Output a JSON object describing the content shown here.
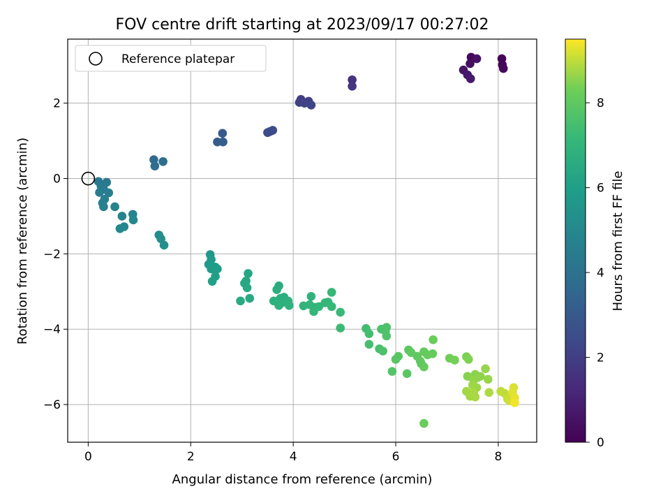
{
  "chart_data": {
    "type": "scatter",
    "title": "FOV centre drift starting at 2023/09/17 00:27:02",
    "xlabel": "Angular distance from reference (arcmin)",
    "ylabel": "Rotation from reference (arcmin)",
    "xlim": [
      -0.4,
      8.75
    ],
    "ylim": [
      -7.0,
      3.7
    ],
    "xticks": [
      0,
      2,
      4,
      6,
      8
    ],
    "yticks": [
      2,
      0,
      -2,
      -4,
      -6
    ],
    "xtick_labels": [
      "0",
      "2",
      "4",
      "6",
      "8"
    ],
    "ytick_labels": [
      "2",
      "0",
      "−2",
      "−4",
      "−6"
    ],
    "grid": true,
    "legend": {
      "placement": "top-left",
      "label": "Reference platepar",
      "marker": "open-circle"
    },
    "reference_point": {
      "x": 0,
      "y": 0
    },
    "colorbar": {
      "label": "Hours from first FF file",
      "min": 0,
      "max": 9.5,
      "ticks": [
        0,
        2,
        4,
        6,
        8
      ],
      "tick_labels": [
        "0",
        "2",
        "4",
        "6",
        "8"
      ],
      "colormap": "viridis"
    },
    "points": [
      {
        "x": 7.47,
        "y": 3.22,
        "hours": 0.25
      },
      {
        "x": 7.45,
        "y": 3.05,
        "hours": 0.4
      },
      {
        "x": 7.58,
        "y": 3.18,
        "hours": 0.5
      },
      {
        "x": 7.32,
        "y": 2.88,
        "hours": 0.6
      },
      {
        "x": 7.4,
        "y": 2.75,
        "hours": 0.7
      },
      {
        "x": 7.46,
        "y": 2.65,
        "hours": 0.8
      },
      {
        "x": 8.07,
        "y": 3.18,
        "hours": 0.1
      },
      {
        "x": 8.08,
        "y": 3.02,
        "hours": 0.15
      },
      {
        "x": 8.1,
        "y": 2.92,
        "hours": 0.2
      },
      {
        "x": 5.15,
        "y": 2.62,
        "hours": 1.6
      },
      {
        "x": 5.15,
        "y": 2.45,
        "hours": 1.7
      },
      {
        "x": 4.15,
        "y": 2.1,
        "hours": 2.0
      },
      {
        "x": 4.12,
        "y": 2.02,
        "hours": 2.05
      },
      {
        "x": 4.3,
        "y": 2.05,
        "hours": 2.1
      },
      {
        "x": 4.35,
        "y": 1.95,
        "hours": 2.2
      },
      {
        "x": 4.22,
        "y": 2.0,
        "hours": 2.15
      },
      {
        "x": 3.6,
        "y": 1.28,
        "hours": 2.4
      },
      {
        "x": 3.5,
        "y": 1.22,
        "hours": 2.5
      },
      {
        "x": 3.55,
        "y": 1.25,
        "hours": 2.45
      },
      {
        "x": 2.62,
        "y": 1.2,
        "hours": 3.0
      },
      {
        "x": 2.52,
        "y": 0.97,
        "hours": 3.1
      },
      {
        "x": 2.63,
        "y": 0.97,
        "hours": 3.15
      },
      {
        "x": 1.28,
        "y": 0.5,
        "hours": 3.7
      },
      {
        "x": 1.3,
        "y": 0.33,
        "hours": 3.8
      },
      {
        "x": 1.46,
        "y": 0.45,
        "hours": 3.85
      },
      {
        "x": 0.2,
        "y": -0.08,
        "hours": 4.3
      },
      {
        "x": 0.36,
        "y": -0.1,
        "hours": 4.35
      },
      {
        "x": 0.25,
        "y": -0.2,
        "hours": 4.4
      },
      {
        "x": 0.3,
        "y": -0.28,
        "hours": 4.45
      },
      {
        "x": 0.22,
        "y": -0.37,
        "hours": 4.5
      },
      {
        "x": 0.4,
        "y": -0.38,
        "hours": 4.55
      },
      {
        "x": 0.32,
        "y": -0.55,
        "hours": 4.6
      },
      {
        "x": 0.28,
        "y": -0.65,
        "hours": 4.65
      },
      {
        "x": 0.3,
        "y": -0.75,
        "hours": 4.7
      },
      {
        "x": 0.52,
        "y": -0.75,
        "hours": 4.75
      },
      {
        "x": 0.66,
        "y": -1.0,
        "hours": 4.8
      },
      {
        "x": 0.87,
        "y": -0.95,
        "hours": 4.85
      },
      {
        "x": 0.88,
        "y": -1.1,
        "hours": 4.9
      },
      {
        "x": 0.7,
        "y": -1.28,
        "hours": 4.95
      },
      {
        "x": 0.62,
        "y": -1.33,
        "hours": 5.0
      },
      {
        "x": 1.38,
        "y": -1.5,
        "hours": 5.2
      },
      {
        "x": 1.42,
        "y": -1.6,
        "hours": 5.25
      },
      {
        "x": 1.48,
        "y": -1.77,
        "hours": 5.3
      },
      {
        "x": 2.38,
        "y": -2.02,
        "hours": 5.7
      },
      {
        "x": 2.4,
        "y": -2.15,
        "hours": 5.75
      },
      {
        "x": 2.35,
        "y": -2.28,
        "hours": 5.8
      },
      {
        "x": 2.4,
        "y": -2.4,
        "hours": 5.85
      },
      {
        "x": 2.48,
        "y": -2.35,
        "hours": 5.9
      },
      {
        "x": 2.52,
        "y": -2.4,
        "hours": 5.95
      },
      {
        "x": 2.48,
        "y": -2.6,
        "hours": 6.0
      },
      {
        "x": 2.42,
        "y": -2.73,
        "hours": 6.05
      },
      {
        "x": 3.12,
        "y": -2.52,
        "hours": 6.3
      },
      {
        "x": 3.08,
        "y": -2.72,
        "hours": 6.35
      },
      {
        "x": 3.05,
        "y": -2.78,
        "hours": 6.4
      },
      {
        "x": 3.1,
        "y": -2.9,
        "hours": 6.45
      },
      {
        "x": 3.15,
        "y": -3.18,
        "hours": 6.5
      },
      {
        "x": 2.97,
        "y": -3.25,
        "hours": 6.5
      },
      {
        "x": 3.72,
        "y": -2.85,
        "hours": 6.6
      },
      {
        "x": 3.68,
        "y": -2.95,
        "hours": 6.65
      },
      {
        "x": 3.82,
        "y": -3.15,
        "hours": 6.7
      },
      {
        "x": 3.75,
        "y": -3.18,
        "hours": 6.7
      },
      {
        "x": 3.62,
        "y": -3.25,
        "hours": 6.75
      },
      {
        "x": 3.78,
        "y": -3.3,
        "hours": 6.75
      },
      {
        "x": 3.9,
        "y": -3.25,
        "hours": 6.8
      },
      {
        "x": 3.72,
        "y": -3.37,
        "hours": 6.8
      },
      {
        "x": 3.92,
        "y": -3.37,
        "hours": 6.85
      },
      {
        "x": 4.35,
        "y": -3.13,
        "hours": 6.9
      },
      {
        "x": 4.2,
        "y": -3.38,
        "hours": 6.95
      },
      {
        "x": 4.32,
        "y": -3.35,
        "hours": 7.0
      },
      {
        "x": 4.42,
        "y": -3.42,
        "hours": 7.0
      },
      {
        "x": 4.5,
        "y": -3.4,
        "hours": 7.05
      },
      {
        "x": 4.4,
        "y": -3.53,
        "hours": 7.05
      },
      {
        "x": 4.62,
        "y": -3.3,
        "hours": 7.1
      },
      {
        "x": 4.68,
        "y": -3.28,
        "hours": 7.1
      },
      {
        "x": 4.75,
        "y": -3.02,
        "hours": 7.15
      },
      {
        "x": 4.75,
        "y": -3.4,
        "hours": 7.15
      },
      {
        "x": 4.92,
        "y": -3.55,
        "hours": 7.2
      },
      {
        "x": 4.92,
        "y": -3.97,
        "hours": 7.25
      },
      {
        "x": 5.42,
        "y": -3.98,
        "hours": 7.4
      },
      {
        "x": 5.48,
        "y": -4.12,
        "hours": 7.45
      },
      {
        "x": 5.48,
        "y": -4.4,
        "hours": 7.5
      },
      {
        "x": 5.68,
        "y": -4.52,
        "hours": 7.55
      },
      {
        "x": 5.75,
        "y": -4.58,
        "hours": 7.6
      },
      {
        "x": 5.72,
        "y": -4.0,
        "hours": 7.6
      },
      {
        "x": 5.82,
        "y": -3.95,
        "hours": 7.65
      },
      {
        "x": 5.8,
        "y": -4.05,
        "hours": 7.65
      },
      {
        "x": 5.82,
        "y": -4.18,
        "hours": 7.7
      },
      {
        "x": 5.93,
        "y": -5.12,
        "hours": 7.8
      },
      {
        "x": 6.0,
        "y": -4.8,
        "hours": 7.85
      },
      {
        "x": 6.05,
        "y": -4.72,
        "hours": 7.85
      },
      {
        "x": 6.22,
        "y": -5.18,
        "hours": 7.9
      },
      {
        "x": 6.25,
        "y": -4.55,
        "hours": 7.95
      },
      {
        "x": 6.3,
        "y": -4.62,
        "hours": 8.0
      },
      {
        "x": 6.42,
        "y": -4.72,
        "hours": 8.0
      },
      {
        "x": 6.48,
        "y": -4.85,
        "hours": 8.05
      },
      {
        "x": 6.5,
        "y": -4.92,
        "hours": 8.05
      },
      {
        "x": 6.55,
        "y": -5.0,
        "hours": 8.1
      },
      {
        "x": 6.55,
        "y": -4.6,
        "hours": 8.1
      },
      {
        "x": 6.62,
        "y": -4.68,
        "hours": 8.15
      },
      {
        "x": 6.72,
        "y": -4.65,
        "hours": 8.15
      },
      {
        "x": 6.73,
        "y": -4.28,
        "hours": 8.2
      },
      {
        "x": 6.55,
        "y": -6.5,
        "hours": 8.2
      },
      {
        "x": 7.05,
        "y": -4.77,
        "hours": 8.3
      },
      {
        "x": 7.15,
        "y": -4.82,
        "hours": 8.35
      },
      {
        "x": 7.38,
        "y": -4.73,
        "hours": 8.4
      },
      {
        "x": 7.42,
        "y": -4.8,
        "hours": 8.45
      },
      {
        "x": 7.4,
        "y": -5.25,
        "hours": 8.5
      },
      {
        "x": 7.55,
        "y": -5.2,
        "hours": 8.55
      },
      {
        "x": 7.6,
        "y": -5.28,
        "hours": 8.55
      },
      {
        "x": 7.52,
        "y": -5.35,
        "hours": 8.6
      },
      {
        "x": 7.65,
        "y": -5.25,
        "hours": 8.6
      },
      {
        "x": 7.75,
        "y": -5.05,
        "hours": 8.65
      },
      {
        "x": 7.8,
        "y": -5.33,
        "hours": 8.65
      },
      {
        "x": 7.5,
        "y": -5.48,
        "hours": 8.7
      },
      {
        "x": 7.58,
        "y": -5.55,
        "hours": 8.7
      },
      {
        "x": 7.38,
        "y": -5.65,
        "hours": 8.75
      },
      {
        "x": 7.45,
        "y": -5.78,
        "hours": 8.75
      },
      {
        "x": 7.55,
        "y": -5.8,
        "hours": 8.8
      },
      {
        "x": 7.52,
        "y": -5.68,
        "hours": 8.8
      },
      {
        "x": 7.82,
        "y": -5.68,
        "hours": 8.85
      },
      {
        "x": 8.05,
        "y": -5.65,
        "hours": 8.95
      },
      {
        "x": 8.12,
        "y": -5.7,
        "hours": 9.0
      },
      {
        "x": 8.18,
        "y": -5.85,
        "hours": 9.05
      },
      {
        "x": 8.22,
        "y": -5.9,
        "hours": 9.1
      },
      {
        "x": 8.3,
        "y": -5.55,
        "hours": 9.2
      },
      {
        "x": 8.28,
        "y": -5.68,
        "hours": 9.25
      },
      {
        "x": 8.32,
        "y": -5.82,
        "hours": 9.3
      },
      {
        "x": 8.32,
        "y": -5.95,
        "hours": 9.4
      }
    ]
  }
}
